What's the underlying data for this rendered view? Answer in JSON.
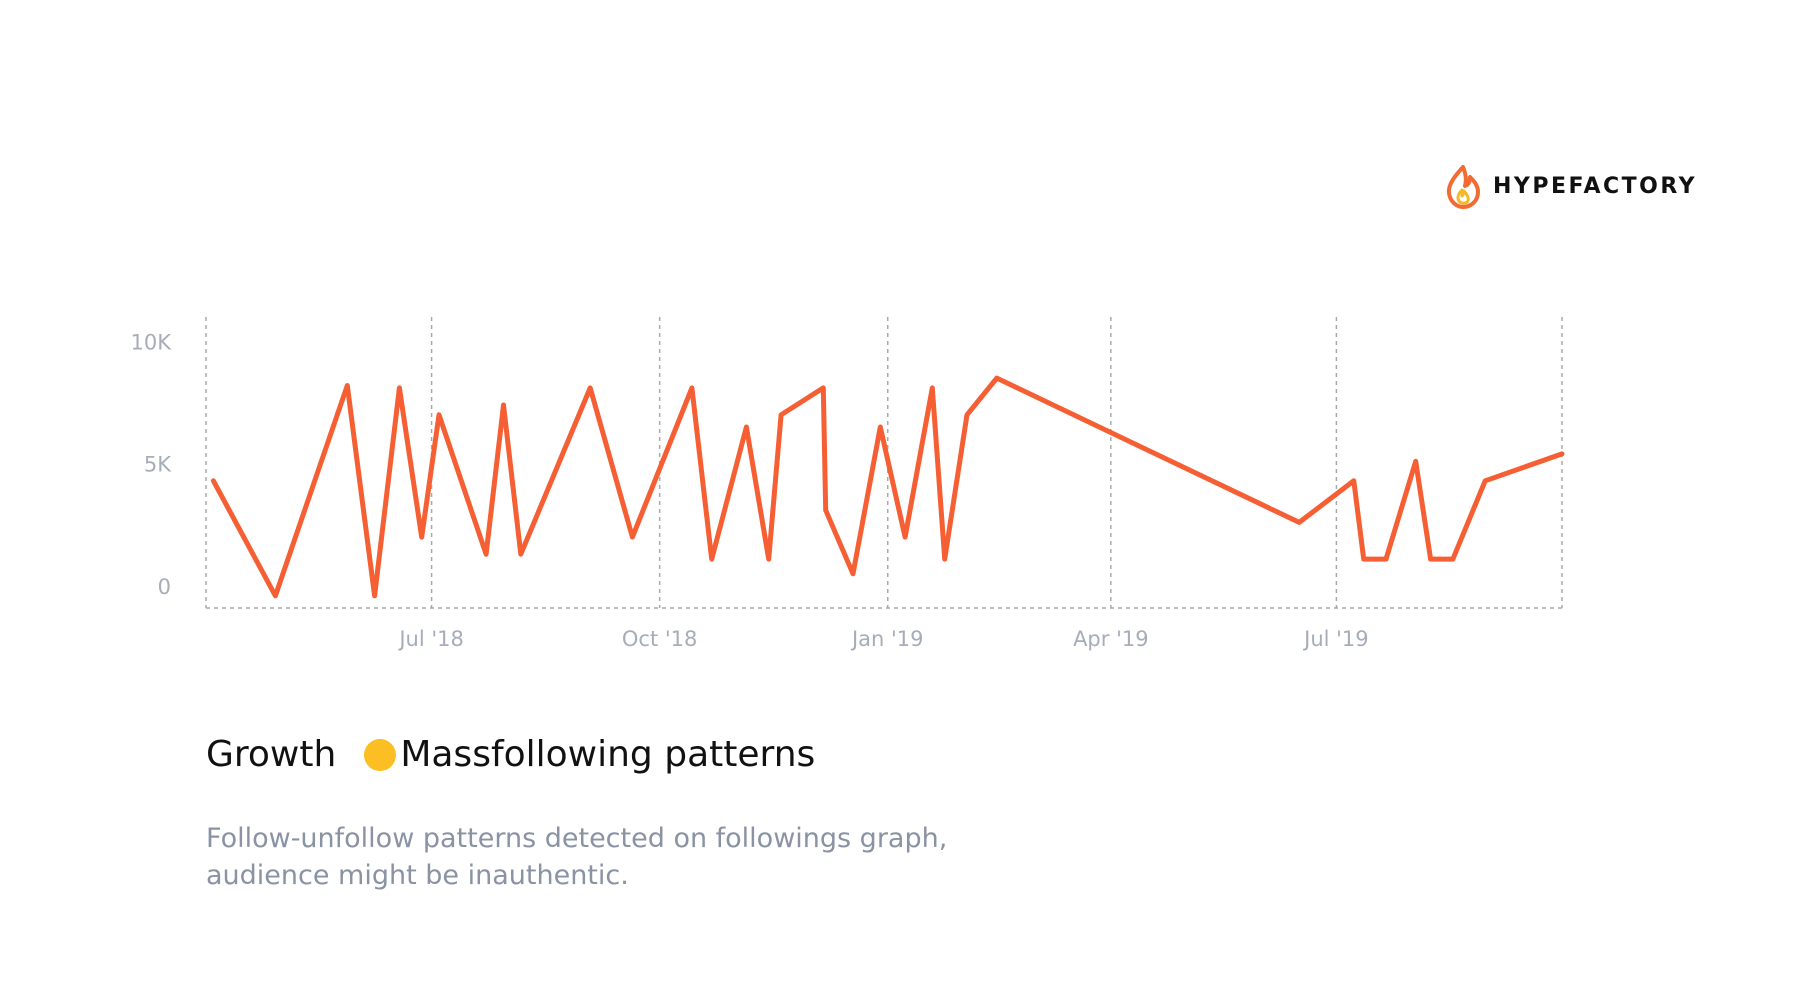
{
  "brand": {
    "name": "HYPEFACTORY",
    "icon": "flame-icon",
    "colors": {
      "outer": "#f26b33",
      "inner": "#f5b82a"
    }
  },
  "legend": {
    "title": "Growth",
    "pattern_label": "Massfollowing patterns",
    "dot_color": "#fbbf24"
  },
  "description": {
    "line1": "Follow-unfollow patterns detected on followings graph,",
    "line2": "audience might be inauthentic."
  },
  "colors": {
    "line": "#f55f33",
    "grid": "#a9a9a9",
    "tick_text": "#a7adb8"
  },
  "chart_data": {
    "type": "line",
    "title": "",
    "xlabel": "",
    "ylabel": "",
    "x_tick_labels": [
      "Jul '18",
      "Oct '18",
      "Jan '19",
      "Apr '19",
      "Jul '19"
    ],
    "x_tick_dates": [
      "2018-07-01",
      "2018-10-01",
      "2019-01-01",
      "2019-04-01",
      "2019-07-01"
    ],
    "xlim": [
      "2018-04-01",
      "2019-09-30"
    ],
    "y_tick_labels": [
      "0",
      "5K",
      "10K"
    ],
    "y_tick_values": [
      0,
      5000,
      10000
    ],
    "ylim": [
      -900,
      11000
    ],
    "grid": "vertical dashed",
    "series": [
      {
        "x": [
          "2018-04-04",
          "2018-04-29",
          "2018-05-28",
          "2018-06-08",
          "2018-06-18",
          "2018-06-27",
          "2018-07-04",
          "2018-07-23",
          "2018-07-30",
          "2018-08-06",
          "2018-09-03",
          "2018-09-20",
          "2018-10-14",
          "2018-10-22",
          "2018-11-05",
          "2018-11-14",
          "2018-11-19",
          "2018-12-06",
          "2018-12-07",
          "2018-12-18",
          "2018-12-29",
          "2019-01-08",
          "2019-01-19",
          "2019-01-24",
          "2019-02-02",
          "2019-02-14",
          "2019-06-16",
          "2019-07-08",
          "2019-07-12",
          "2019-07-21",
          "2019-08-02",
          "2019-08-08",
          "2019-08-17",
          "2019-08-30",
          "2019-09-30"
        ],
        "y": [
          4300,
          -400,
          8200,
          -400,
          8100,
          2000,
          7000,
          1300,
          7400,
          1300,
          8100,
          2000,
          8100,
          1100,
          6500,
          1100,
          7000,
          8100,
          3100,
          500,
          6500,
          2000,
          8100,
          1100,
          7000,
          8500,
          2600,
          4300,
          1100,
          1100,
          5100,
          1100,
          1100,
          4300,
          5400
        ]
      }
    ]
  }
}
